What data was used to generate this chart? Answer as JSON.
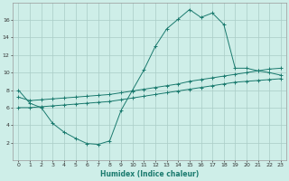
{
  "xlabel": "Humidex (Indice chaleur)",
  "background_color": "#ceeee8",
  "grid_color": "#aaccc6",
  "line_color": "#1a7a6e",
  "xlim": [
    -0.5,
    23.5
  ],
  "ylim": [
    0,
    18
  ],
  "xticks": [
    0,
    1,
    2,
    3,
    4,
    5,
    6,
    7,
    8,
    9,
    10,
    11,
    12,
    13,
    14,
    15,
    16,
    17,
    18,
    19,
    20,
    21,
    22,
    23
  ],
  "yticks": [
    2,
    4,
    6,
    8,
    10,
    12,
    14,
    16
  ],
  "series": {
    "main": [
      [
        0,
        8.0
      ],
      [
        1,
        6.5
      ],
      [
        2,
        6.0
      ],
      [
        3,
        4.2
      ],
      [
        4,
        3.2
      ],
      [
        5,
        2.5
      ],
      [
        6,
        1.9
      ],
      [
        7,
        1.8
      ],
      [
        8,
        2.2
      ],
      [
        9,
        5.7
      ],
      [
        10,
        8.0
      ],
      [
        11,
        10.3
      ],
      [
        12,
        13.0
      ],
      [
        13,
        15.0
      ],
      [
        14,
        16.1
      ],
      [
        15,
        17.2
      ],
      [
        16,
        16.3
      ],
      [
        17,
        16.8
      ],
      [
        18,
        15.5
      ],
      [
        19,
        10.5
      ],
      [
        20,
        10.5
      ],
      [
        21,
        10.2
      ],
      [
        22,
        10.0
      ],
      [
        23,
        9.7
      ]
    ],
    "upper": [
      [
        0,
        7.2
      ],
      [
        1,
        6.8
      ],
      [
        2,
        6.9
      ],
      [
        3,
        7.0
      ],
      [
        4,
        7.1
      ],
      [
        5,
        7.2
      ],
      [
        6,
        7.3
      ],
      [
        7,
        7.4
      ],
      [
        8,
        7.5
      ],
      [
        9,
        7.7
      ],
      [
        10,
        7.9
      ],
      [
        11,
        8.1
      ],
      [
        12,
        8.3
      ],
      [
        13,
        8.5
      ],
      [
        14,
        8.7
      ],
      [
        15,
        9.0
      ],
      [
        16,
        9.2
      ],
      [
        17,
        9.4
      ],
      [
        18,
        9.6
      ],
      [
        19,
        9.8
      ],
      [
        20,
        10.0
      ],
      [
        21,
        10.2
      ],
      [
        22,
        10.4
      ],
      [
        23,
        10.5
      ]
    ],
    "lower": [
      [
        0,
        6.0
      ],
      [
        1,
        6.0
      ],
      [
        2,
        6.1
      ],
      [
        3,
        6.2
      ],
      [
        4,
        6.3
      ],
      [
        5,
        6.4
      ],
      [
        6,
        6.5
      ],
      [
        7,
        6.6
      ],
      [
        8,
        6.7
      ],
      [
        9,
        6.9
      ],
      [
        10,
        7.1
      ],
      [
        11,
        7.3
      ],
      [
        12,
        7.5
      ],
      [
        13,
        7.7
      ],
      [
        14,
        7.9
      ],
      [
        15,
        8.1
      ],
      [
        16,
        8.3
      ],
      [
        17,
        8.5
      ],
      [
        18,
        8.7
      ],
      [
        19,
        8.9
      ],
      [
        20,
        9.0
      ],
      [
        21,
        9.1
      ],
      [
        22,
        9.2
      ],
      [
        23,
        9.3
      ]
    ]
  }
}
